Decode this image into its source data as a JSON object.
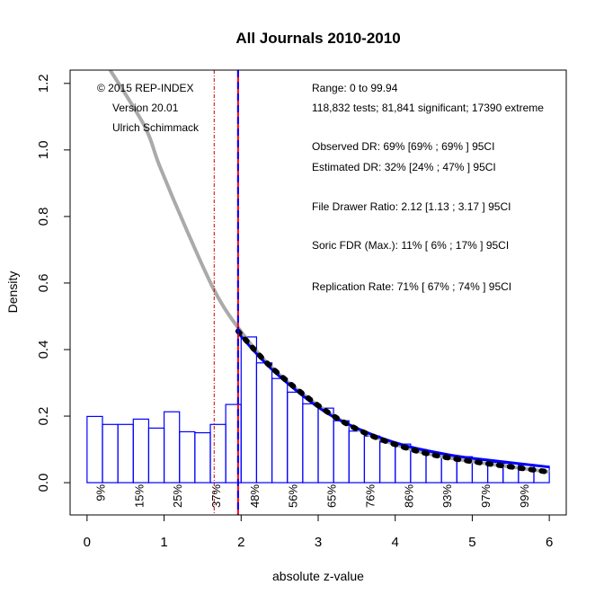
{
  "chart_data": {
    "type": "bar",
    "title": "All Journals 2010-2010",
    "xlabel": "absolute z-value",
    "ylabel": "Density",
    "xlim": [
      -0.22,
      6.22
    ],
    "ylim": [
      -0.097,
      1.24
    ],
    "xticks": [
      0,
      1,
      2,
      3,
      4,
      5,
      6
    ],
    "yticks": [
      "0.0",
      "0.2",
      "0.4",
      "0.6",
      "0.8",
      "1.0",
      "1.2"
    ],
    "histogram": {
      "bin_width": 0.2,
      "bin_start": 0,
      "values": [
        0.199,
        0.175,
        0.175,
        0.191,
        0.164,
        0.213,
        0.153,
        0.15,
        0.175,
        0.235,
        0.438,
        0.36,
        0.313,
        0.272,
        0.237,
        0.224,
        0.186,
        0.155,
        0.14,
        0.122,
        0.116,
        0.1,
        0.088,
        0.082,
        0.078,
        0.067,
        0.061,
        0.058,
        0.053,
        0.049
      ],
      "color": "#0000ff"
    },
    "curves": [
      {
        "name": "density-full",
        "color": "#aaaaaa",
        "style": "solid",
        "x": [
          0.3,
          0.75,
          0.945,
          1.33,
          1.67,
          1.98,
          2.41,
          3.03,
          3.54,
          4.12,
          4.74,
          6.0
        ],
        "y": [
          1.24,
          1.07,
          0.95,
          0.74,
          0.57,
          0.46,
          0.343,
          0.227,
          0.157,
          0.106,
          0.073,
          0.032
        ]
      },
      {
        "name": "observed-fit",
        "color": "#0000ff",
        "style": "solid",
        "x": [
          1.96,
          2.41,
          3.03,
          3.54,
          4.12,
          4.74,
          5.2,
          6.0
        ],
        "y": [
          0.45,
          0.338,
          0.222,
          0.16,
          0.112,
          0.082,
          0.068,
          0.047
        ]
      },
      {
        "name": "model-fit",
        "color": "#000000",
        "style": "dotted",
        "x": [
          1.96,
          2.41,
          3.03,
          3.54,
          4.12,
          4.74,
          6.0
        ],
        "y": [
          0.455,
          0.343,
          0.227,
          0.157,
          0.106,
          0.073,
          0.032
        ]
      }
    ],
    "vlines": [
      {
        "name": "significance-line",
        "x": 1.96,
        "color": "#ff0000",
        "style": "solid"
      },
      {
        "name": "significance-dashed-line",
        "x": 1.96,
        "color": "#0000ff",
        "style": "dashed"
      },
      {
        "name": "marginal-line",
        "x": 1.65,
        "color": "#cc0000",
        "style": "dashdot"
      }
    ],
    "percent_labels": {
      "x": [
        0.17,
        0.67,
        1.17,
        1.67,
        2.17,
        2.67,
        3.17,
        3.67,
        4.17,
        4.67,
        5.17,
        5.67
      ],
      "labels": [
        "9%",
        "15%",
        "25%",
        "37%",
        "48%",
        "56%",
        "65%",
        "76%",
        "86%",
        "93%",
        "97%",
        "99%"
      ]
    },
    "credits": [
      "© 2015 REP-INDEX",
      "Version 20.01",
      "Ulrich Schimmack"
    ],
    "stats": [
      "Range: 0 to 99.94",
      "118,832 tests; 81,841 significant; 17390 extreme",
      "Observed DR: 69% [69% ; 69% ] 95CI",
      "Estimated DR: 32% [24% ; 47% ] 95CI",
      "File Drawer Ratio: 2.12 [1.13 ; 3.17 ] 95CI",
      "Soric FDR (Max.): 11% [ 6% ; 17% ] 95CI",
      "Replication Rate: 71% [ 67% ; 74% ] 95CI"
    ]
  }
}
